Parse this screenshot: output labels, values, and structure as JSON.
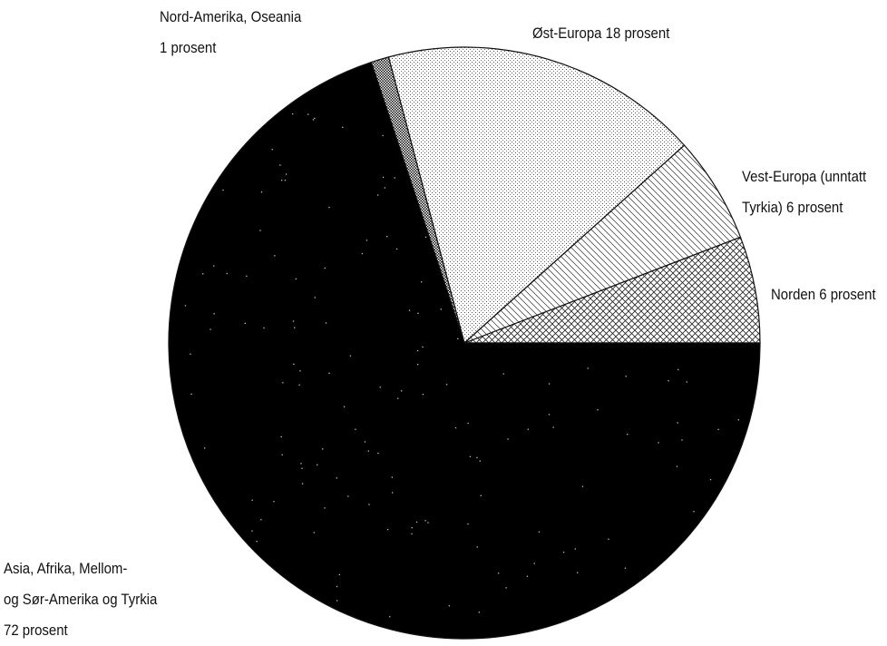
{
  "chart_data": {
    "type": "pie",
    "title": "",
    "start_angle_deg": 0,
    "direction": "counterclockwise",
    "slices": [
      {
        "key": "norden",
        "label_lines": [
          "Norden 6 prosent"
        ],
        "value": 6,
        "pattern": "crosshatch"
      },
      {
        "key": "vest-europa",
        "label_lines": [
          "Vest-Europa (unntatt",
          "Tyrkia) 6 prosent"
        ],
        "value": 6,
        "pattern": "diagonal"
      },
      {
        "key": "ost-europa",
        "label_lines": [
          "Øst-Europa 18 prosent"
        ],
        "value": 18,
        "pattern": "dots"
      },
      {
        "key": "nord-amerika",
        "label_lines": [
          "Nord-Amerika, Oseania",
          "1 prosent"
        ],
        "value": 1,
        "pattern": "dense-dots"
      },
      {
        "key": "asia",
        "label_lines": [
          "Asia, Afrika, Mellom-",
          "og Sør-Amerika og Tyrkia",
          "72 prosent"
        ],
        "value": 72,
        "pattern": "black"
      }
    ]
  }
}
